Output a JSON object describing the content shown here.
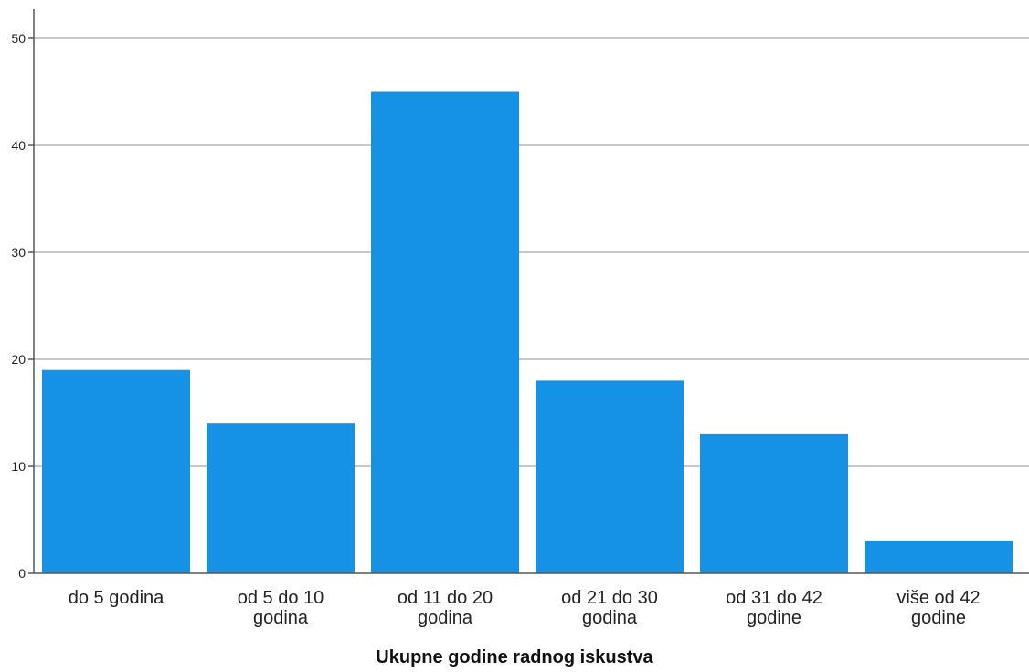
{
  "chart_data": {
    "type": "bar",
    "title": "",
    "xlabel": "Ukupne godine radnog iskustva",
    "ylabel": "",
    "categories": [
      [
        "do 5 godina"
      ],
      [
        "od 5 do 10",
        "godina"
      ],
      [
        "od 11 do 20",
        "godina"
      ],
      [
        "od 21 do 30",
        "godina"
      ],
      [
        "od 31 do 42",
        "godine"
      ],
      [
        "više od 42",
        "godine"
      ]
    ],
    "values": [
      19,
      14,
      45,
      18,
      13,
      3
    ],
    "ylim": [
      0,
      50
    ],
    "yticks": [
      0,
      10,
      20,
      30,
      40,
      50
    ],
    "grid": true,
    "bar_color": "#1591E6"
  }
}
